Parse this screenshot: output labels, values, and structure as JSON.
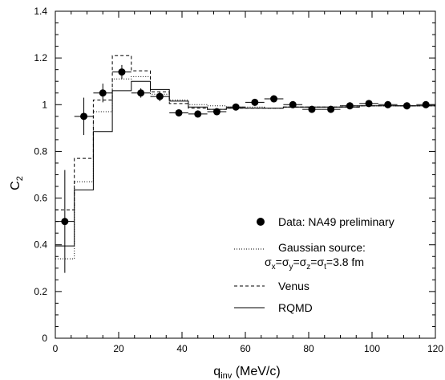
{
  "chart_data": {
    "type": "line",
    "xlabel_main": "q",
    "xlabel_sub": "inv",
    "xlabel_unit": " (MeV/c)",
    "ylabel_main": "C",
    "ylabel_sub": "2",
    "xlim": [
      0,
      120
    ],
    "ylim": [
      0,
      1.4
    ],
    "xticks": [
      0,
      20,
      40,
      60,
      80,
      100,
      120
    ],
    "yticks": [
      0,
      0.2,
      0.4,
      0.6,
      0.8,
      1,
      1.2,
      1.4
    ],
    "xtick_labels": [
      "0",
      "20",
      "40",
      "60",
      "80",
      "100",
      "120"
    ],
    "ytick_labels": [
      "0",
      "0.2",
      "0.4",
      "0.6",
      "0.8",
      "1",
      "1.2",
      "1.4"
    ],
    "bin_edges": [
      0,
      6,
      12,
      18,
      24,
      30,
      36,
      42,
      48,
      54,
      60,
      66,
      72,
      78,
      84,
      90,
      96,
      102,
      108,
      114,
      120
    ],
    "data_points": {
      "name": "Data: NA49 preliminary",
      "x": [
        3,
        9,
        15,
        21,
        27,
        33,
        39,
        45,
        51,
        57,
        63,
        69,
        75,
        81,
        87,
        93,
        99,
        105,
        111,
        117
      ],
      "y": [
        0.5,
        0.95,
        1.05,
        1.14,
        1.05,
        1.035,
        0.965,
        0.96,
        0.97,
        0.99,
        1.01,
        1.025,
        1.0,
        0.98,
        0.98,
        0.995,
        1.005,
        1.0,
        0.995,
        1.0
      ],
      "yerr": [
        0.22,
        0.08,
        0.04,
        0.03,
        0.02,
        0.02,
        0.015,
        0.015,
        0.015,
        0.015,
        0.015,
        0.015,
        0.015,
        0.015,
        0.015,
        0.015,
        0.015,
        0.015,
        0.015,
        0.015
      ]
    },
    "histograms": [
      {
        "name": "Gaussian source:",
        "name_line2": "σx=σy=σz=σt=3.8 fm",
        "style": "dotted",
        "values": [
          0.34,
          0.67,
          0.97,
          1.11,
          1.12,
          1.045,
          1.02,
          1.0,
          0.995,
          0.99,
          0.99,
          0.985,
          0.99,
          0.99,
          0.99,
          0.995,
          0.995,
          0.995,
          0.995,
          0.995
        ]
      },
      {
        "name": "Venus",
        "style": "dashed",
        "values": [
          0.55,
          0.77,
          1.02,
          1.21,
          1.145,
          1.055,
          1.005,
          0.985,
          0.98,
          0.985,
          0.985,
          0.985,
          0.99,
          0.99,
          0.99,
          0.99,
          0.995,
          0.995,
          0.995,
          0.995
        ]
      },
      {
        "name": "RQMD",
        "style": "solid",
        "values": [
          0.395,
          0.635,
          0.885,
          1.06,
          1.1,
          1.065,
          1.015,
          0.99,
          0.98,
          0.985,
          0.985,
          0.985,
          0.99,
          0.99,
          0.99,
          0.99,
          0.995,
          0.995,
          0.995,
          0.995
        ]
      }
    ],
    "legend": {
      "data_label": "Data: NA49 preliminary",
      "gauss_label_1": "Gaussian source:",
      "gauss_label_2": "σx=σy=σz=σt=3.8 fm",
      "venus_label": "Venus",
      "rqmd_label": "RQMD"
    }
  }
}
